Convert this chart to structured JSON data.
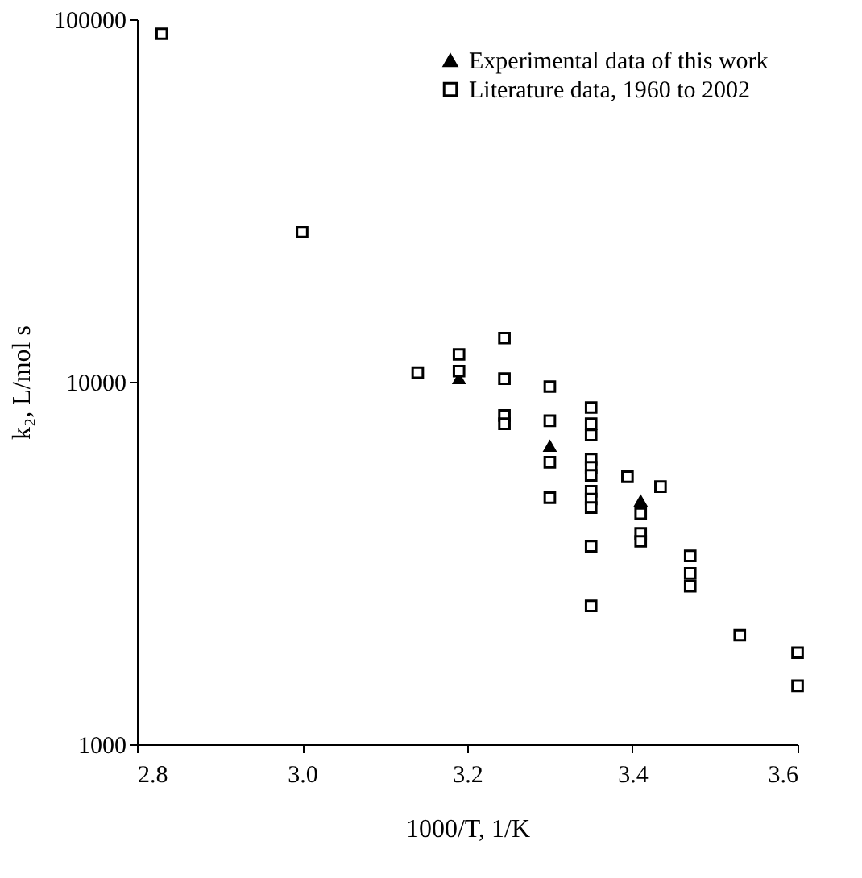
{
  "chart_data": {
    "type": "scatter",
    "xlabel": "1000/T, 1/K",
    "ylabel": "k₂, L/mol s",
    "xlim": [
      2.8,
      3.6
    ],
    "xticks": [
      {
        "value": 2.8,
        "label": "2.8"
      },
      {
        "value": 3.0,
        "label": "3.0"
      },
      {
        "value": 3.2,
        "label": "3.2"
      },
      {
        "value": 3.4,
        "label": "3.4"
      },
      {
        "value": 3.6,
        "label": "3.6"
      }
    ],
    "ylim": [
      1000,
      100000
    ],
    "yticks": [
      1000,
      10000,
      100000
    ],
    "log": true,
    "grid": false,
    "legend": "top right",
    "series": [
      {
        "name": "Experimental data of this work",
        "color": "#000000",
        "marker": "triangle",
        "x": [
          3.19,
          3.3,
          3.41
        ],
        "values": [
          10200,
          6640,
          4690
        ]
      },
      {
        "name": "Literature data, 1960 to 2002",
        "color": "#000000",
        "marker": "square",
        "x": [
          2.83,
          3.0,
          3.14,
          3.245,
          3.19,
          3.19,
          3.245,
          3.245,
          3.245,
          3.3,
          3.3,
          3.3,
          3.3,
          3.35,
          3.35,
          3.35,
          3.35,
          3.35,
          3.35,
          3.35,
          3.35,
          3.35,
          3.35,
          3.35,
          3.394,
          3.434,
          3.41,
          3.41,
          3.41,
          3.47,
          3.47,
          3.47,
          3.53,
          3.6,
          3.6
        ],
        "values": [
          91200,
          25900,
          10600,
          13200,
          11900,
          10700,
          10200,
          8070,
          7660,
          9700,
          7810,
          6000,
          4790,
          8490,
          7660,
          7130,
          6120,
          5810,
          5520,
          4990,
          4750,
          4500,
          3520,
          2410,
          5470,
          5140,
          4330,
          3820,
          3630,
          3310,
          2960,
          2730,
          2000,
          1790,
          1450
        ]
      }
    ]
  }
}
